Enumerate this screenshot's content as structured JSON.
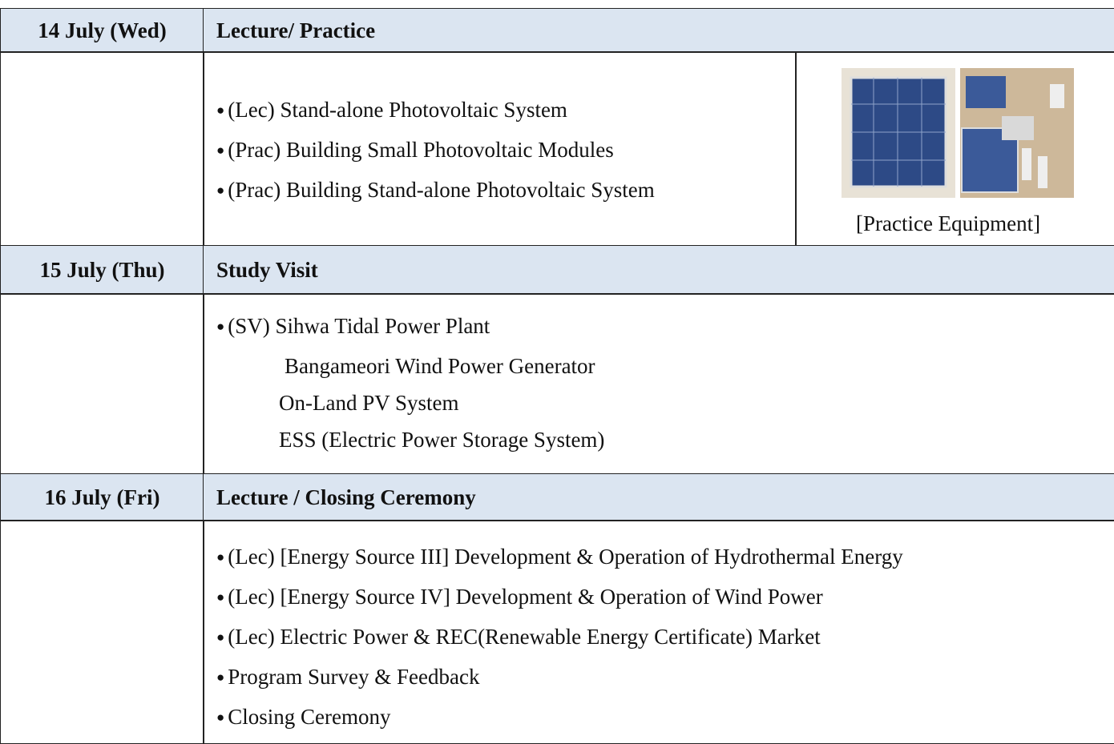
{
  "days": [
    {
      "date": "14 July (Wed)",
      "title": "Lecture/ Practice",
      "items": [
        "(Lec) Stand-alone Photovoltaic System",
        "(Prac) Building Small Photovoltaic Modules",
        "(Prac) Building Stand-alone Photovoltaic System"
      ],
      "image_caption": "[Practice Equipment]"
    },
    {
      "date": "15 July (Thu)",
      "title": "Study Visit",
      "items": [
        "(SV) Sihwa Tidal Power Plant"
      ],
      "sub_items": [
        "Bangameori Wind Power Generator",
        "On-Land PV System",
        "ESS (Electric Power Storage System)"
      ]
    },
    {
      "date": "16 July (Fri)",
      "title": "Lecture / Closing Ceremony",
      "items": [
        "(Lec) [Energy Source III] Development & Operation of Hydrothermal Energy",
        "(Lec) [Energy Source IV] Development & Operation of Wind Power",
        "(Lec) Electric Power & REC(Renewable Energy Certificate) Market",
        "Program Survey & Feedback",
        "Closing Ceremony"
      ]
    }
  ]
}
